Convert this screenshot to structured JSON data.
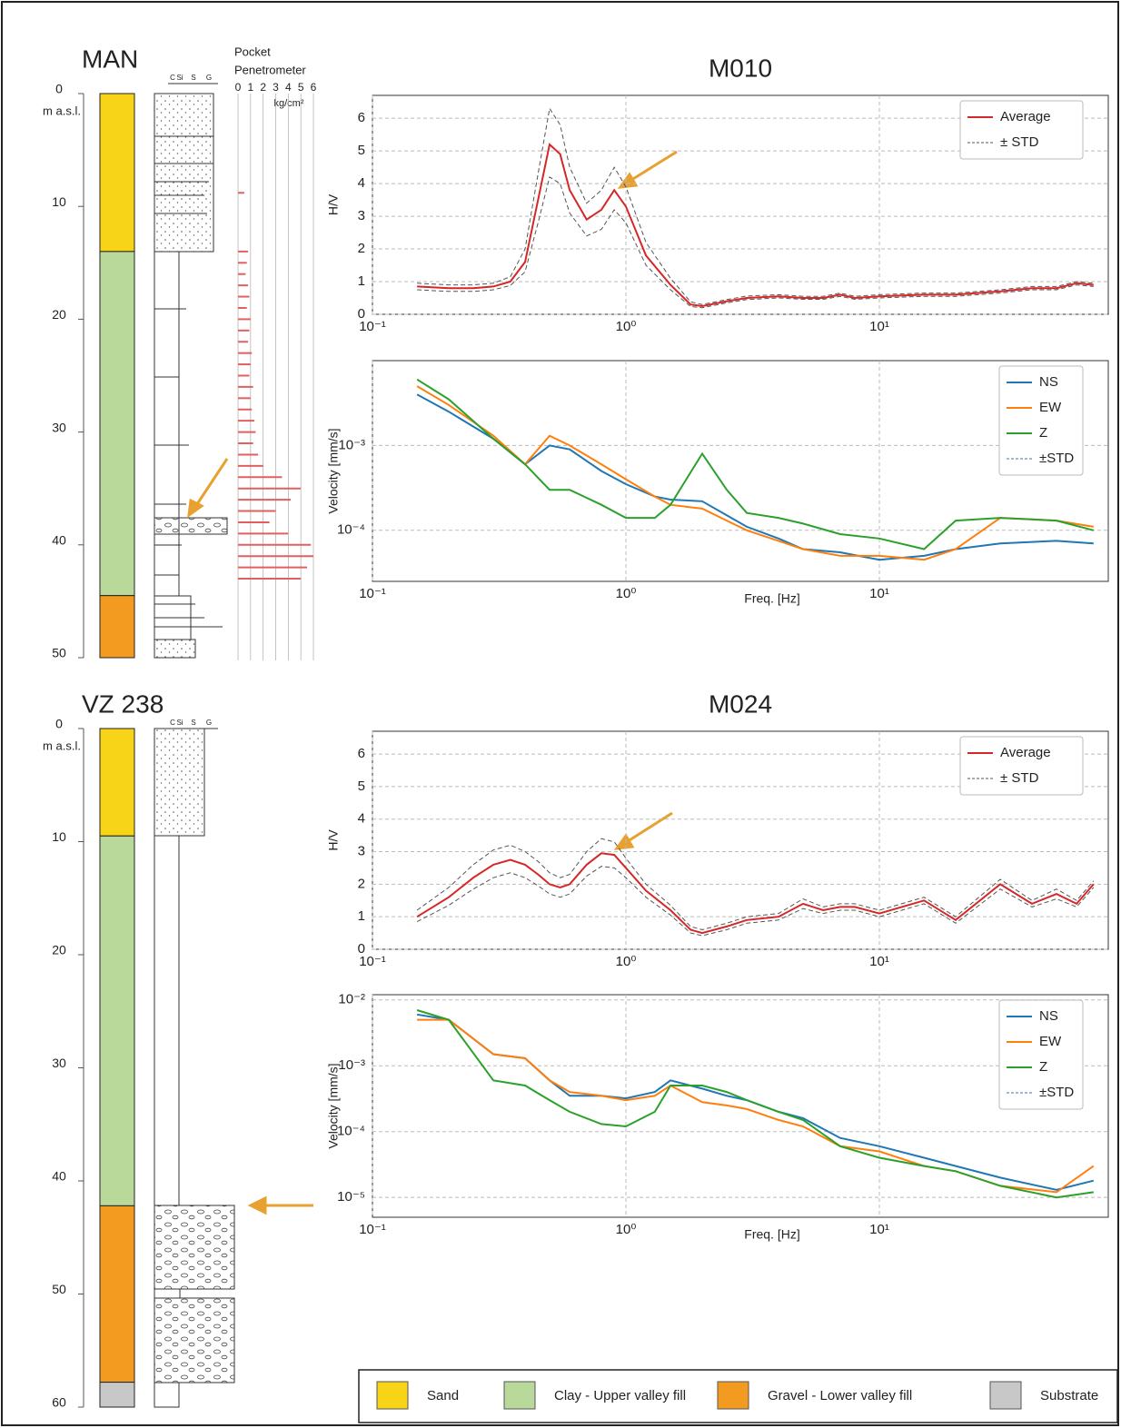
{
  "boreholes": [
    {
      "name": "MAN",
      "unit": "m a.s.l.",
      "ylim": [
        0,
        50
      ],
      "ticks": [
        0,
        10,
        20,
        30,
        40,
        50
      ],
      "grain_scale": [
        "C",
        "Si",
        "S",
        "G"
      ],
      "layers": [
        {
          "top": 0,
          "bottom": 14,
          "color": "#f7d417"
        },
        {
          "top": 14,
          "bottom": 44.5,
          "color": "#b8d99a"
        },
        {
          "top": 44.5,
          "bottom": 50,
          "color": "#f39a21"
        }
      ]
    },
    {
      "name": "VZ 238",
      "unit": "m a.s.l.",
      "ylim": [
        0,
        60
      ],
      "ticks": [
        0,
        10,
        20,
        30,
        40,
        50,
        60
      ],
      "grain_scale": [
        "C",
        "Si",
        "S",
        "G"
      ],
      "layers": [
        {
          "top": 0,
          "bottom": 9.5,
          "color": "#f7d417"
        },
        {
          "top": 9.5,
          "bottom": 42.2,
          "color": "#b8d99a"
        },
        {
          "top": 42.2,
          "bottom": 57.8,
          "color": "#f39a21"
        },
        {
          "top": 57.8,
          "bottom": 60,
          "color": "#c8c8c8"
        }
      ]
    }
  ],
  "penetrometer": {
    "title_lines": [
      "Pocket",
      "Penetrometer"
    ],
    "unit": "kg/cm²",
    "xlim": [
      0,
      6
    ],
    "ticks": [
      0,
      1,
      2,
      3,
      4,
      5,
      6
    ],
    "color": "#e06060",
    "depth": [
      8.8,
      14,
      15,
      16,
      17,
      18,
      19,
      20,
      21,
      22,
      23,
      24,
      25,
      26,
      27,
      28,
      29,
      30,
      31,
      32,
      33,
      34,
      35,
      36,
      37,
      38,
      39,
      40,
      41,
      42,
      43
    ],
    "values": [
      0.5,
      0.8,
      0.7,
      0.6,
      0.8,
      0.9,
      0.7,
      1.0,
      0.9,
      0.8,
      1.1,
      1.0,
      0.9,
      1.2,
      1.0,
      1.1,
      1.3,
      1.4,
      1.2,
      1.6,
      2.0,
      3.5,
      5.0,
      4.2,
      3.0,
      2.5,
      4.0,
      5.8,
      6.0,
      5.5,
      5.0
    ]
  },
  "chart_data": [
    {
      "type": "line",
      "title": "M010",
      "y_label": "H/V",
      "log_x": true,
      "grid": true,
      "x": [
        0.15,
        0.2,
        0.25,
        0.3,
        0.35,
        0.4,
        0.45,
        0.5,
        0.55,
        0.6,
        0.7,
        0.8,
        0.9,
        1.0,
        1.2,
        1.5,
        1.8,
        2,
        2.5,
        3,
        4,
        5,
        6,
        7,
        8,
        10,
        15,
        20,
        30,
        40,
        50,
        60,
        70
      ],
      "xlim": [
        0.1,
        80
      ],
      "xticks": [
        {
          "value": 0.1,
          "label": "10⁻¹"
        },
        {
          "value": 1,
          "label": "10⁰"
        },
        {
          "value": 10,
          "label": "10¹"
        }
      ],
      "ylim": [
        0,
        6.7
      ],
      "yticks": [
        0,
        1,
        2,
        3,
        4,
        5,
        6
      ],
      "series": [
        {
          "name": "Average",
          "color": "#d62728",
          "values": [
            0.85,
            0.8,
            0.8,
            0.85,
            1.0,
            1.6,
            3.5,
            5.2,
            4.9,
            3.8,
            2.9,
            3.2,
            3.8,
            3.3,
            1.8,
            0.9,
            0.3,
            0.25,
            0.4,
            0.5,
            0.55,
            0.5,
            0.5,
            0.6,
            0.5,
            0.55,
            0.6,
            0.6,
            0.7,
            0.8,
            0.8,
            0.95,
            0.9
          ]
        },
        {
          "name": "± STD",
          "color": "#555555",
          "dash": true,
          "values": [
            0.95,
            0.9,
            0.9,
            0.95,
            1.15,
            2.0,
            4.3,
            6.3,
            5.8,
            4.5,
            3.4,
            3.8,
            4.5,
            3.9,
            2.2,
            1.1,
            0.38,
            0.3,
            0.45,
            0.56,
            0.6,
            0.55,
            0.55,
            0.65,
            0.55,
            0.6,
            0.65,
            0.65,
            0.75,
            0.85,
            0.85,
            1.0,
            0.95
          ],
          "lower": [
            0.75,
            0.7,
            0.7,
            0.75,
            0.88,
            1.3,
            2.8,
            4.2,
            4.0,
            3.1,
            2.4,
            2.6,
            3.2,
            2.8,
            1.5,
            0.75,
            0.24,
            0.2,
            0.35,
            0.45,
            0.5,
            0.46,
            0.46,
            0.55,
            0.46,
            0.5,
            0.55,
            0.55,
            0.65,
            0.75,
            0.75,
            0.9,
            0.85
          ]
        }
      ]
    },
    {
      "type": "line",
      "y_label": "Velocity [mm/s]",
      "x_label": "Freq. [Hz]",
      "log_x": true,
      "log_y": true,
      "grid": true,
      "x": [
        0.15,
        0.2,
        0.3,
        0.4,
        0.5,
        0.6,
        0.8,
        1,
        1.3,
        1.5,
        2,
        2.5,
        3,
        4,
        5,
        7,
        10,
        15,
        20,
        30,
        50,
        70
      ],
      "xlim": [
        0.1,
        80
      ],
      "xticks": [
        {
          "value": 0.1,
          "label": "10⁻¹"
        },
        {
          "value": 1,
          "label": "10⁰"
        },
        {
          "value": 10,
          "label": "10¹"
        }
      ],
      "ylim": [
        2.5e-05,
        0.01
      ],
      "yticks": [
        {
          "value": 0.001,
          "label": "10⁻³"
        },
        {
          "value": 0.0001,
          "label": "10⁻⁴"
        }
      ],
      "series": [
        {
          "name": "NS",
          "color": "#1f77b4",
          "values": [
            0.004,
            0.0025,
            0.0012,
            0.0006,
            0.001,
            0.0009,
            0.0005,
            0.00035,
            0.00025,
            0.00023,
            0.00022,
            0.00015,
            0.00011,
            8e-05,
            6e-05,
            5.5e-05,
            4.5e-05,
            5e-05,
            6e-05,
            7e-05,
            7.5e-05,
            7e-05
          ]
        },
        {
          "name": "EW",
          "color": "#ff7f0e",
          "values": [
            0.005,
            0.003,
            0.0013,
            0.0006,
            0.0013,
            0.001,
            0.0006,
            0.0004,
            0.00025,
            0.0002,
            0.00018,
            0.00013,
            0.0001,
            7.5e-05,
            6e-05,
            5e-05,
            5e-05,
            4.5e-05,
            6e-05,
            0.00014,
            0.00013,
            0.00011
          ]
        },
        {
          "name": "Z",
          "color": "#2ca02c",
          "values": [
            0.006,
            0.0035,
            0.0012,
            0.0006,
            0.0003,
            0.0003,
            0.0002,
            0.00014,
            0.00014,
            0.0002,
            0.0008,
            0.0003,
            0.00016,
            0.00014,
            0.00012,
            9e-05,
            8e-05,
            6e-05,
            0.00013,
            0.00014,
            0.00013,
            0.0001
          ]
        }
      ],
      "legend_extra": {
        "name": "±STD",
        "color": "#4a6fb5"
      }
    },
    {
      "type": "line",
      "title": "M024",
      "y_label": "H/V",
      "log_x": true,
      "grid": true,
      "x": [
        0.15,
        0.2,
        0.25,
        0.3,
        0.35,
        0.4,
        0.45,
        0.5,
        0.55,
        0.6,
        0.7,
        0.8,
        0.9,
        1.0,
        1.2,
        1.5,
        1.8,
        2,
        2.5,
        3,
        4,
        5,
        6,
        7,
        8,
        10,
        15,
        20,
        30,
        40,
        50,
        60,
        70
      ],
      "xlim": [
        0.1,
        80
      ],
      "xticks": [
        {
          "value": 0.1,
          "label": "10⁻¹"
        },
        {
          "value": 1,
          "label": "10⁰"
        },
        {
          "value": 10,
          "label": "10¹"
        }
      ],
      "ylim": [
        0,
        6.7
      ],
      "yticks": [
        0,
        1,
        2,
        3,
        4,
        5,
        6
      ],
      "series": [
        {
          "name": "Average",
          "color": "#d62728",
          "values": [
            1.0,
            1.6,
            2.2,
            2.6,
            2.75,
            2.6,
            2.3,
            2.0,
            1.9,
            2.0,
            2.6,
            2.95,
            2.9,
            2.5,
            1.8,
            1.2,
            0.6,
            0.5,
            0.7,
            0.9,
            1.0,
            1.4,
            1.2,
            1.3,
            1.3,
            1.1,
            1.5,
            0.9,
            2.0,
            1.4,
            1.7,
            1.4,
            2.0
          ]
        },
        {
          "name": "± STD",
          "color": "#555555",
          "dash": true,
          "values": [
            1.2,
            1.9,
            2.6,
            3.05,
            3.2,
            3.0,
            2.7,
            2.35,
            2.2,
            2.3,
            3.0,
            3.4,
            3.3,
            2.8,
            2.0,
            1.35,
            0.7,
            0.6,
            0.8,
            1.0,
            1.1,
            1.55,
            1.3,
            1.4,
            1.4,
            1.2,
            1.6,
            1.0,
            2.15,
            1.5,
            1.85,
            1.5,
            2.1
          ],
          "lower": [
            0.85,
            1.35,
            1.85,
            2.2,
            2.35,
            2.2,
            1.95,
            1.7,
            1.6,
            1.7,
            2.25,
            2.55,
            2.5,
            2.2,
            1.6,
            1.05,
            0.5,
            0.42,
            0.6,
            0.8,
            0.9,
            1.25,
            1.1,
            1.2,
            1.2,
            1.0,
            1.4,
            0.8,
            1.85,
            1.3,
            1.55,
            1.3,
            1.9
          ]
        }
      ]
    },
    {
      "type": "line",
      "y_label": "Velocity [mm/s]",
      "x_label": "Freq. [Hz]",
      "log_x": true,
      "log_y": true,
      "grid": true,
      "x": [
        0.15,
        0.2,
        0.3,
        0.4,
        0.5,
        0.6,
        0.8,
        1,
        1.3,
        1.5,
        2,
        2.5,
        3,
        4,
        5,
        7,
        10,
        15,
        20,
        30,
        50,
        70
      ],
      "xlim": [
        0.1,
        80
      ],
      "xticks": [
        {
          "value": 0.1,
          "label": "10⁻¹"
        },
        {
          "value": 1,
          "label": "10⁰"
        },
        {
          "value": 10,
          "label": "10¹"
        }
      ],
      "ylim": [
        5e-06,
        0.012
      ],
      "yticks": [
        {
          "value": 0.01,
          "label": "10⁻²"
        },
        {
          "value": 0.001,
          "label": "10⁻³"
        },
        {
          "value": 0.0001,
          "label": "10⁻⁴"
        },
        {
          "value": 1e-05,
          "label": "10⁻⁵"
        }
      ],
      "series": [
        {
          "name": "NS",
          "color": "#1f77b4",
          "values": [
            0.006,
            0.005,
            0.0015,
            0.0013,
            0.0006,
            0.00035,
            0.00035,
            0.00032,
            0.0004,
            0.0006,
            0.00045,
            0.00035,
            0.0003,
            0.0002,
            0.00016,
            8e-05,
            6e-05,
            4e-05,
            3e-05,
            2e-05,
            1.3e-05,
            1.8e-05
          ]
        },
        {
          "name": "EW",
          "color": "#ff7f0e",
          "values": [
            0.005,
            0.005,
            0.0015,
            0.0013,
            0.0006,
            0.0004,
            0.00035,
            0.0003,
            0.00035,
            0.0005,
            0.00028,
            0.00025,
            0.00022,
            0.00015,
            0.00012,
            6e-05,
            5e-05,
            3e-05,
            2.5e-05,
            1.5e-05,
            1.2e-05,
            3e-05
          ]
        },
        {
          "name": "Z",
          "color": "#2ca02c",
          "values": [
            0.007,
            0.005,
            0.0006,
            0.0005,
            0.0003,
            0.0002,
            0.00013,
            0.00012,
            0.0002,
            0.0005,
            0.0005,
            0.0004,
            0.0003,
            0.0002,
            0.00015,
            6e-05,
            4e-05,
            3e-05,
            2.5e-05,
            1.5e-05,
            1e-05,
            1.2e-05
          ]
        }
      ],
      "legend_extra": {
        "name": "±STD",
        "color": "#4a6fb5"
      }
    }
  ],
  "legend": [
    {
      "label": "Sand",
      "color": "#f7d417"
    },
    {
      "label": "Clay - Upper valley fill",
      "color": "#b8d99a"
    },
    {
      "label": "Gravel - Lower valley fill",
      "color": "#f39a21"
    },
    {
      "label": "Substrate",
      "color": "#c8c8c8"
    }
  ]
}
